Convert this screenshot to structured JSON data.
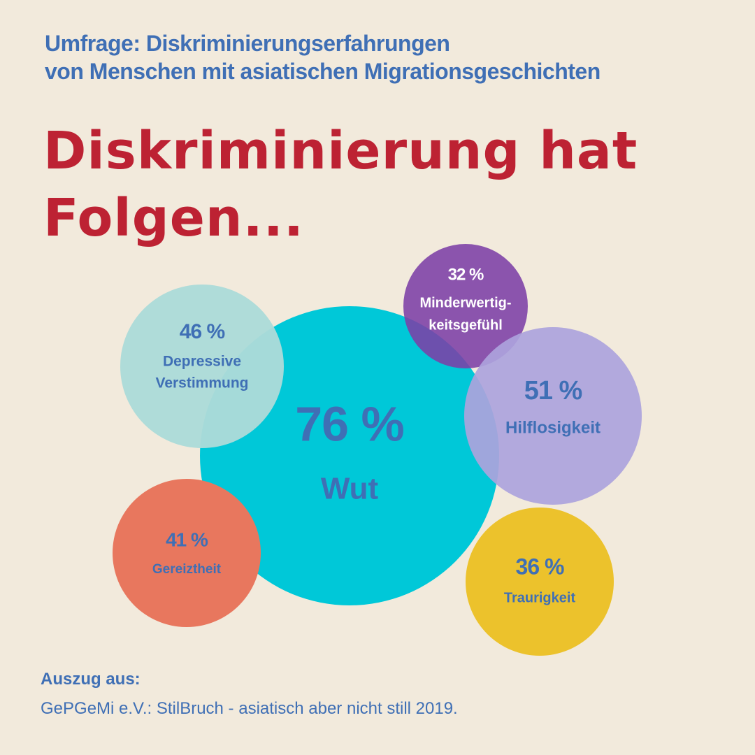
{
  "header": {
    "subtitle_line1": "Umfrage: Diskriminierungserfahrungen",
    "subtitle_line2": "von Menschen mit asiatischen Migrationsgeschichten",
    "headline_line1": "Diskriminierung hat",
    "headline_line2": "Folgen..."
  },
  "chart_data": {
    "type": "bubble",
    "unit": "%",
    "series": [
      {
        "label": "Wut",
        "value": 76,
        "value_text": "76 %",
        "color": "#00c8d8",
        "text_color": "#3f6fb5"
      },
      {
        "label": "Depressive Verstimmung",
        "label_lines": [
          "Depressive",
          "Verstimmung"
        ],
        "value": 46,
        "value_text": "46 %",
        "color": "#acdbd9",
        "text_color": "#3f6fb5"
      },
      {
        "label": "Minderwertig-keitsgefühl",
        "label_lines": [
          "Minderwertig-",
          "keitsgefühl"
        ],
        "value": 32,
        "value_text": "32 %",
        "color": "#7c3fa6",
        "text_color": "#ffffff"
      },
      {
        "label": "Hilflosigkeit",
        "value": 51,
        "value_text": "51 %",
        "color": "#aca3dc",
        "text_color": "#3f6fb5"
      },
      {
        "label": "Gereiztheit",
        "value": 41,
        "value_text": "41 %",
        "color": "#e8775e",
        "text_color": "#3f6fb5"
      },
      {
        "label": "Traurigkeit",
        "value": 36,
        "value_text": "36 %",
        "color": "#ecc22c",
        "text_color": "#3f6fb5"
      }
    ]
  },
  "source": {
    "label": "Auszug aus:",
    "text": "GePGeMi e.V.: StilBruch - asiatisch aber nicht still 2019."
  }
}
